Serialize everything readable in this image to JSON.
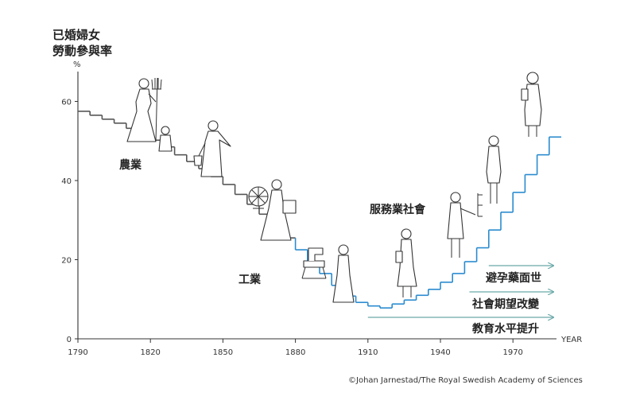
{
  "title_lines": [
    "已婚婦女",
    "勞動參與率"
  ],
  "y_unit": "%",
  "x_unit": "YEAR",
  "credit": "©Johan Jarnestad/The Royal Swedish Academy of Sciences",
  "eras": {
    "agriculture": "農業",
    "industry": "工業",
    "services": "服務業社會"
  },
  "factors": [
    {
      "label": "避孕藥面世",
      "start_year": 1960
    },
    {
      "label": "社會期望改變",
      "start_year": 1952
    },
    {
      "label": "教育水平提升",
      "start_year": 1910
    }
  ],
  "colors": {
    "past": "#555555",
    "future": "#2a8bd0",
    "arrow": "#6aa9a8",
    "axis": "#333333"
  },
  "chart_data": {
    "type": "line",
    "style": "stepped",
    "x_ticks": [
      1790,
      1820,
      1850,
      1880,
      1910,
      1940,
      1970
    ],
    "y_ticks": [
      0,
      20,
      40,
      60
    ],
    "xlim": [
      1790,
      1992
    ],
    "ylim": [
      0,
      70
    ],
    "grid": false,
    "legend": "none",
    "color_change_year": 1880,
    "series": [
      {
        "x": [
          1790,
          1795,
          1800,
          1805,
          1810,
          1815,
          1820,
          1825,
          1830,
          1835,
          1840,
          1845,
          1850,
          1855,
          1860,
          1865,
          1870,
          1875,
          1880,
          1885,
          1890,
          1895,
          1900,
          1905,
          1910,
          1915,
          1920,
          1925,
          1930,
          1935,
          1940,
          1945,
          1950,
          1955,
          1960,
          1965,
          1970,
          1975,
          1980,
          1985
        ],
        "y": [
          57.5,
          56.5,
          55.5,
          54.5,
          53.2,
          51.8,
          50.2,
          48.5,
          46.5,
          44.8,
          43.0,
          41.0,
          39.0,
          36.5,
          34.0,
          31.5,
          28.5,
          25.5,
          22.5,
          19.5,
          16.5,
          13.5,
          10.8,
          9.2,
          8.3,
          7.8,
          8.8,
          9.8,
          11.0,
          12.5,
          14.3,
          16.5,
          19.5,
          23.0,
          27.5,
          32.0,
          37.0,
          41.5,
          46.5,
          51.0
        ]
      }
    ]
  }
}
